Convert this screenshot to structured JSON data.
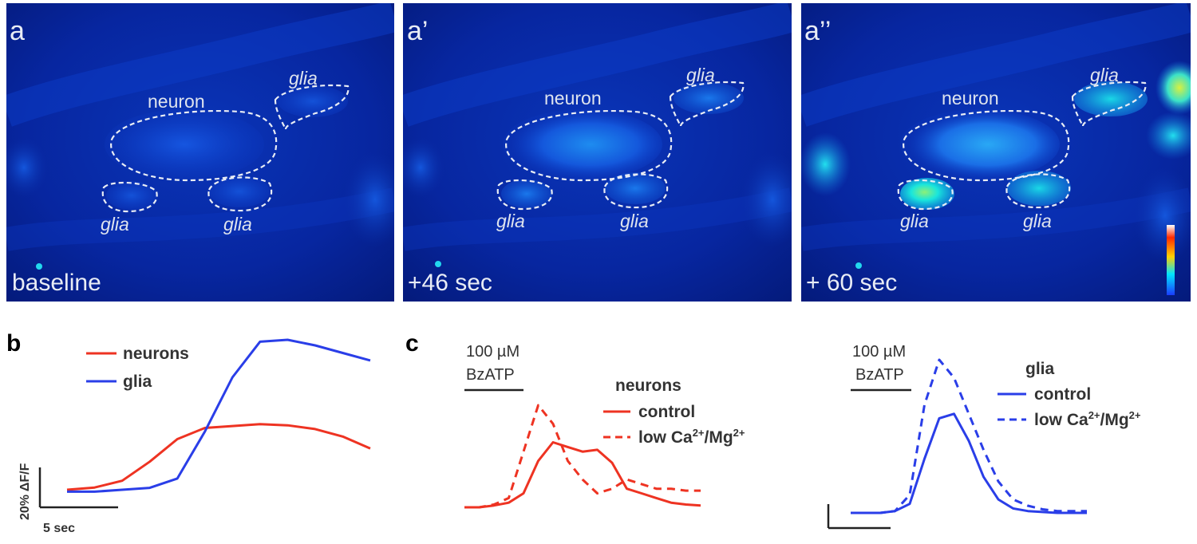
{
  "panel_a": {
    "images": [
      {
        "letter": "a",
        "time": "baseline"
      },
      {
        "letter": "a’",
        "time": "+46 sec"
      },
      {
        "letter": "a’’",
        "time": "+ 60 sec"
      }
    ],
    "roi_labels": {
      "neuron": "neuron",
      "glia": "glia"
    },
    "colormap": [
      "#ffffff",
      "#ff2a00",
      "#ffd000",
      "#00e5ff",
      "#1a3cff"
    ]
  },
  "panel_b": {
    "letter": "b",
    "legend": {
      "neurons": "neurons",
      "glia": "glia"
    },
    "scale_y": "20% ΔF/F",
    "scale_x": "5 sec"
  },
  "panel_c": {
    "letter": "c",
    "stim_conc": "100 µM",
    "stim_drug": "BzATP",
    "neurons_title": "neurons",
    "glia_title": "glia",
    "control": "control",
    "low_prefix": "low Ca",
    "low_mid": "/Mg",
    "sup": "2+"
  },
  "colors": {
    "neurons": "#ee3322",
    "glia": "#2a3ee8",
    "axis": "#000000"
  },
  "chart_data": [
    {
      "type": "line",
      "panel": "b",
      "series": [
        {
          "name": "neurons",
          "x": [
            0,
            1,
            2,
            3,
            4,
            5,
            6,
            7,
            8,
            9,
            10,
            11
          ],
          "y": [
            0,
            0.6,
            2.4,
            7.5,
            13.5,
            16.5,
            17.0,
            17.5,
            17.2,
            16.2,
            14.2,
            11.0
          ]
        },
        {
          "name": "glia",
          "x": [
            0,
            1,
            2,
            3,
            4,
            5,
            6,
            7,
            8,
            9,
            10,
            11
          ],
          "y": [
            -0.5,
            -0.5,
            0,
            0.5,
            3.0,
            15.5,
            30.0,
            39.5,
            40.0,
            38.5,
            36.5,
            34.5
          ]
        }
      ]
    },
    {
      "type": "line",
      "panel": "c-neurons",
      "series": [
        {
          "name": "control",
          "x": [
            0,
            2,
            4,
            6,
            8,
            10,
            12,
            14,
            16,
            18,
            20,
            22,
            24,
            26,
            28,
            30,
            32
          ],
          "y": [
            0,
            0,
            0.2,
            0.5,
            1.5,
            5,
            7,
            6.5,
            6,
            6.2,
            4.8,
            2,
            1.5,
            1,
            0.5,
            0.3,
            0.2
          ]
        },
        {
          "name": "low Ca2+/Mg2+",
          "x": [
            0,
            2,
            4,
            6,
            8,
            10,
            12,
            14,
            16,
            18,
            20,
            22,
            24,
            26,
            28,
            30,
            32
          ],
          "y": [
            0,
            0,
            0.3,
            1,
            6,
            11,
            9,
            5,
            3,
            1.5,
            2,
            3,
            2.5,
            2,
            2,
            1.8,
            1.8
          ]
        }
      ]
    },
    {
      "type": "line",
      "panel": "c-glia",
      "series": [
        {
          "name": "control",
          "x": [
            0,
            2,
            4,
            6,
            8,
            10,
            12,
            14,
            16,
            18,
            20,
            22,
            24,
            26,
            28,
            30,
            32
          ],
          "y": [
            0,
            0,
            0,
            0.2,
            1,
            6,
            10.5,
            11,
            8,
            4,
            1.5,
            0.5,
            0.2,
            0.1,
            0,
            0,
            0
          ]
        },
        {
          "name": "low Ca2+/Mg2+",
          "x": [
            0,
            2,
            4,
            6,
            8,
            10,
            12,
            14,
            16,
            18,
            20,
            22,
            24,
            26,
            28,
            30,
            32
          ],
          "y": [
            0,
            0,
            0,
            0.2,
            2,
            12,
            17,
            15,
            11,
            7,
            3.5,
            1.5,
            0.8,
            0.4,
            0.2,
            0.2,
            0.2
          ]
        }
      ]
    }
  ]
}
